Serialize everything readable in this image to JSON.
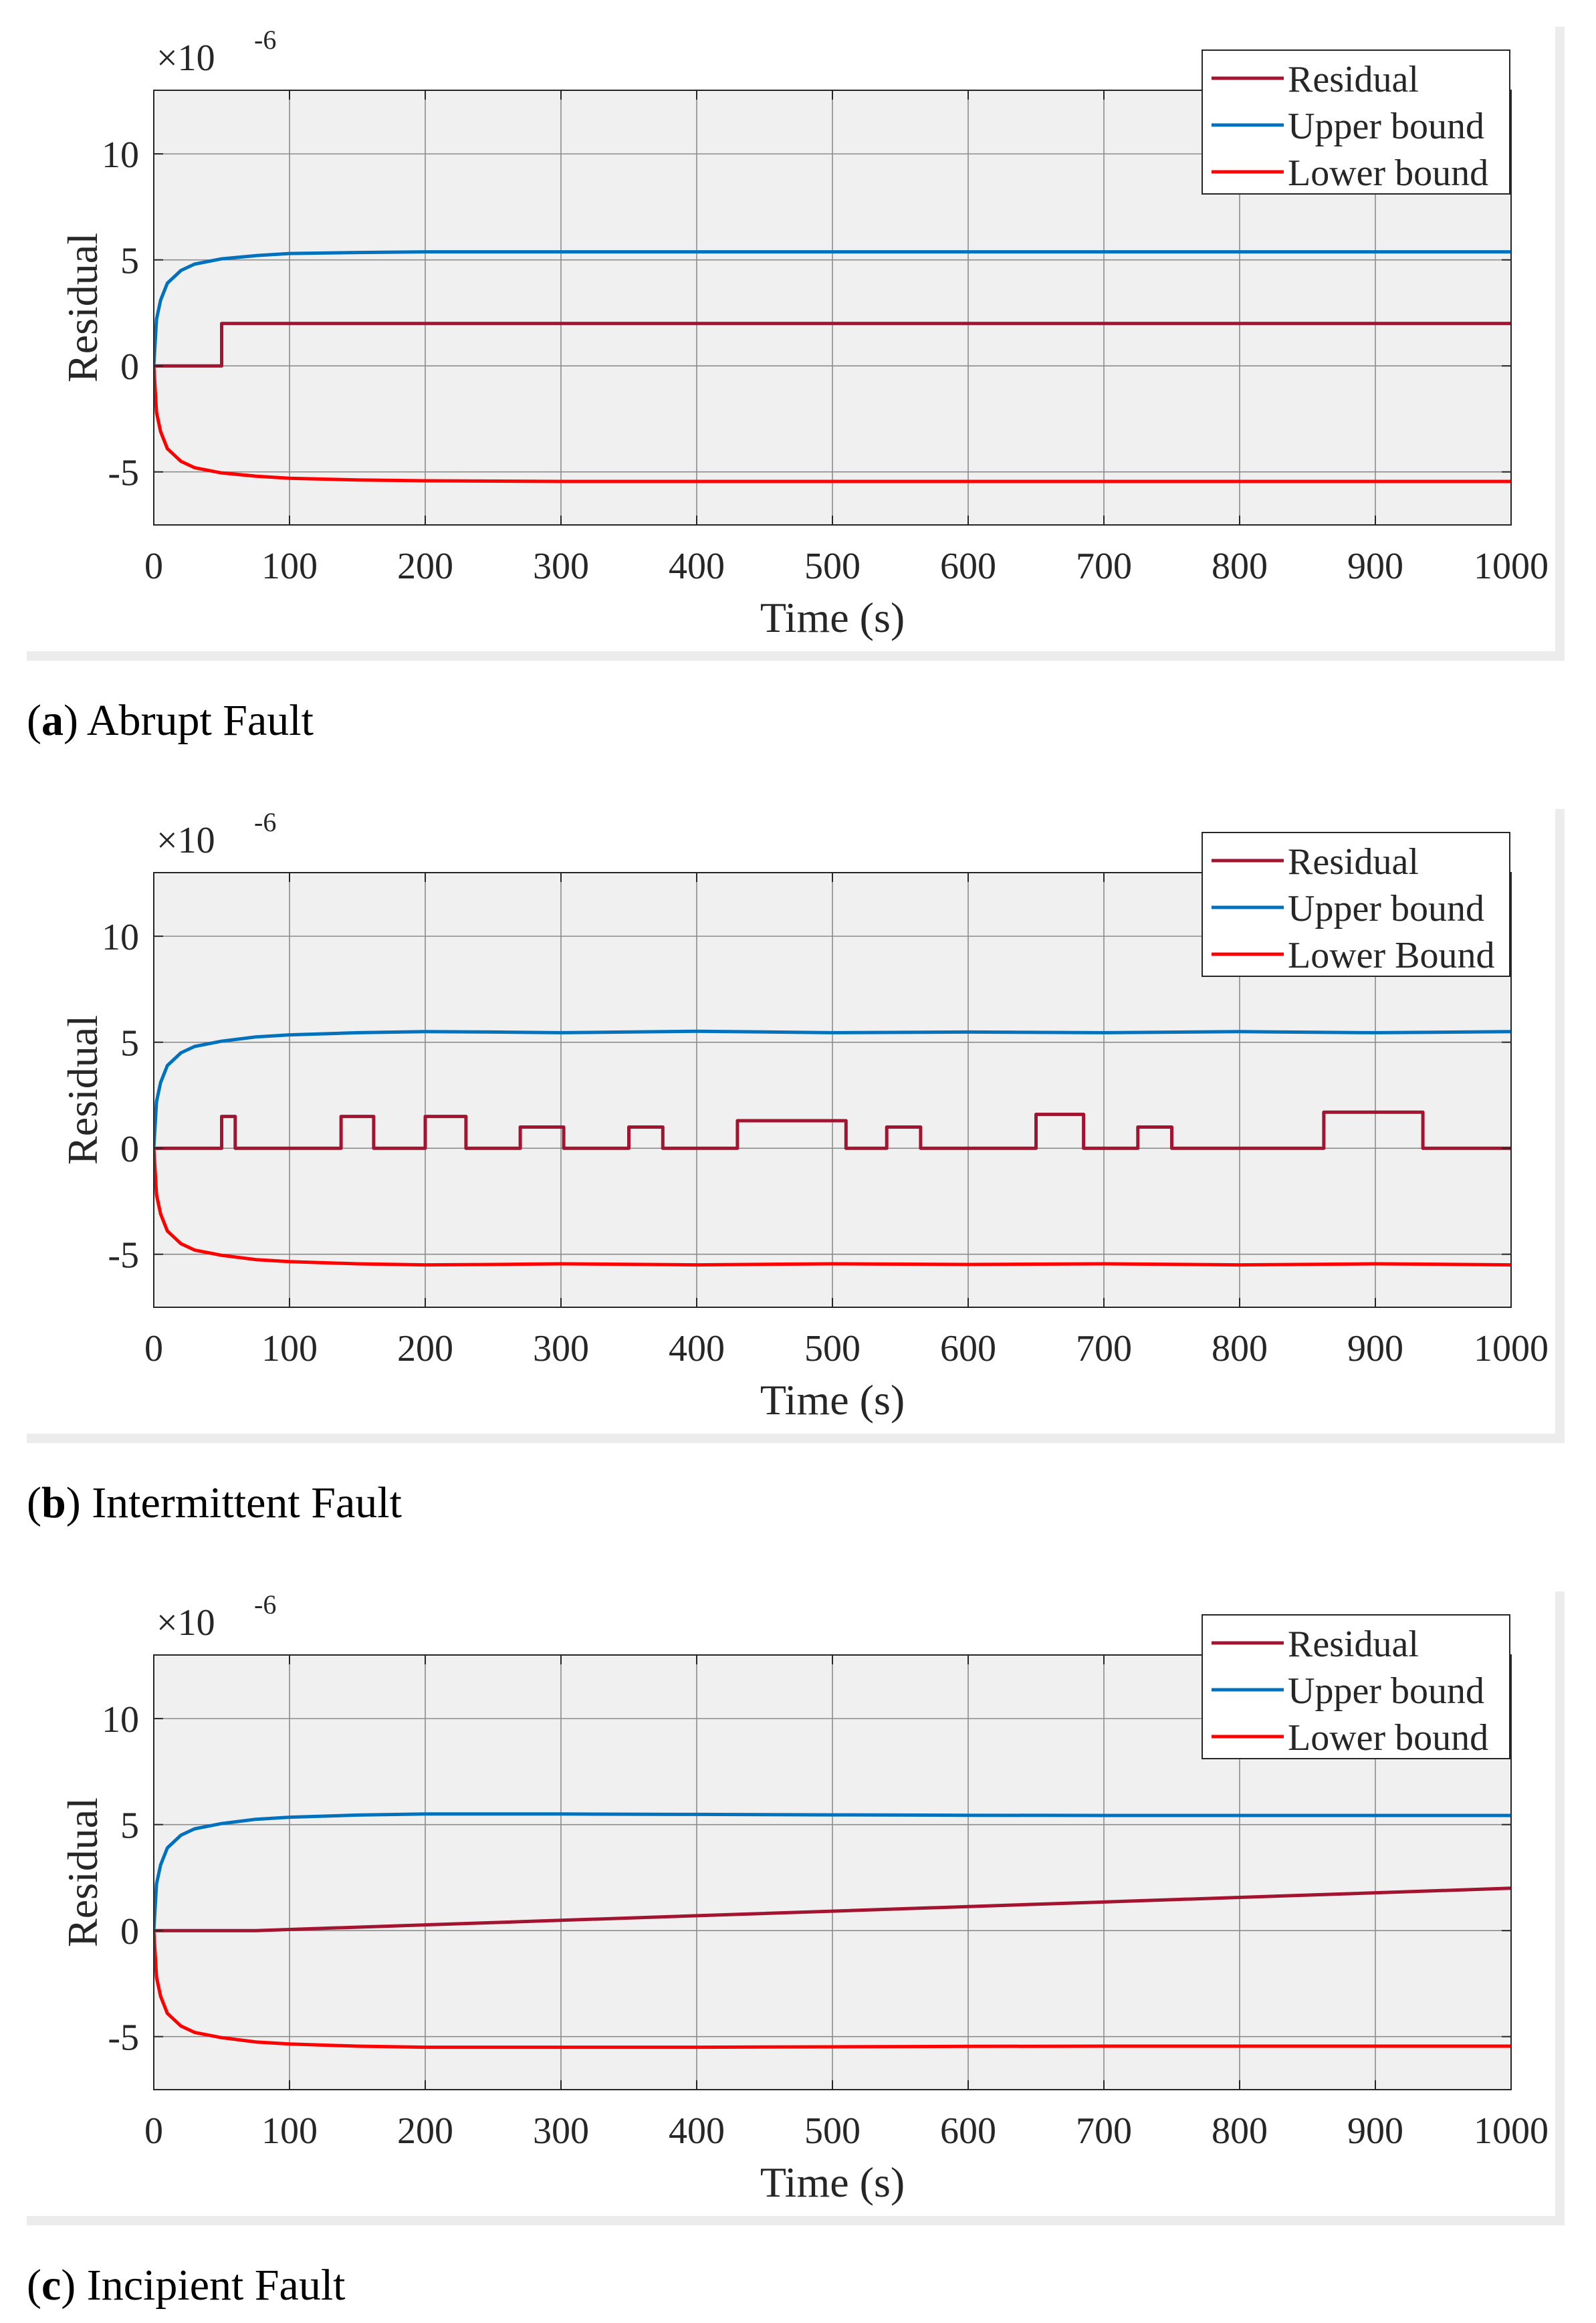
{
  "panels": [
    {
      "caption": {
        "letter": "a",
        "text": "Abrupt Fault"
      },
      "chart_data": {
        "type": "line",
        "title": "",
        "xlabel": "Time (s)",
        "ylabel": "Residual",
        "exponent_label": "×10",
        "exponent": "-6",
        "xlim": [
          0,
          1000
        ],
        "ylim": [
          -7.5,
          13
        ],
        "xticks": [
          0,
          100,
          200,
          300,
          400,
          500,
          600,
          700,
          800,
          900,
          1000
        ],
        "yticks": [
          -5,
          0,
          5,
          10
        ],
        "ytick_labels": [
          "-5",
          "0",
          "5",
          "10"
        ],
        "grid": true,
        "legend_position": "top-right",
        "series": [
          {
            "name": "Residual",
            "color": "#a2142f",
            "x": [
              0,
              50,
              50,
              1000
            ],
            "y": [
              0,
              0,
              2.0,
              2.0
            ]
          },
          {
            "name": "Upper bound",
            "color": "#0072bd",
            "x": [
              0,
              2,
              5,
              10,
              20,
              30,
              50,
              75,
              100,
              150,
              200,
              300,
              500,
              800,
              1000
            ],
            "y": [
              0,
              2.2,
              3.1,
              3.9,
              4.5,
              4.8,
              5.05,
              5.2,
              5.3,
              5.35,
              5.38,
              5.38,
              5.38,
              5.38,
              5.38
            ]
          },
          {
            "name": "Lower bound",
            "color": "#ff0000",
            "x": [
              0,
              2,
              5,
              10,
              20,
              30,
              50,
              75,
              100,
              150,
              200,
              300,
              500,
              800,
              1000
            ],
            "y": [
              0,
              -2.2,
              -3.1,
              -3.9,
              -4.5,
              -4.8,
              -5.05,
              -5.2,
              -5.3,
              -5.38,
              -5.42,
              -5.45,
              -5.45,
              -5.45,
              -5.45
            ]
          }
        ]
      }
    },
    {
      "caption": {
        "letter": "b",
        "text": "Intermittent Fault"
      },
      "chart_data": {
        "type": "line",
        "title": "",
        "xlabel": "Time (s)",
        "ylabel": "Residual",
        "exponent_label": "×10",
        "exponent": "-6",
        "xlim": [
          0,
          1000
        ],
        "ylim": [
          -7.5,
          13
        ],
        "xticks": [
          0,
          100,
          200,
          300,
          400,
          500,
          600,
          700,
          800,
          900,
          1000
        ],
        "yticks": [
          -5,
          0,
          5,
          10
        ],
        "ytick_labels": [
          "-5",
          "0",
          "5",
          "10"
        ],
        "grid": true,
        "legend_position": "top-right",
        "series": [
          {
            "name": "Residual",
            "color": "#a2142f",
            "x": [
              0,
              50,
              50,
              60,
              60,
              138,
              138,
              162,
              162,
              200,
              200,
              230,
              230,
              270,
              270,
              302,
              302,
              350,
              350,
              375,
              375,
              430,
              430,
              510,
              510,
              540,
              540,
              565,
              565,
              650,
              650,
              685,
              685,
              725,
              725,
              750,
              750,
              862,
              862,
              935,
              935,
              1000
            ],
            "y": [
              0,
              0,
              1.5,
              1.5,
              0,
              0,
              1.5,
              1.5,
              0,
              0,
              1.5,
              1.5,
              0,
              0,
              1.0,
              1.0,
              0,
              0,
              1.0,
              1.0,
              0,
              0,
              1.3,
              1.3,
              0,
              0,
              1.0,
              1.0,
              0,
              0,
              1.6,
              1.6,
              0,
              0,
              1.0,
              1.0,
              0,
              0,
              1.7,
              1.7,
              0,
              0
            ]
          },
          {
            "name": "Upper bound",
            "color": "#0072bd",
            "x": [
              0,
              2,
              5,
              10,
              20,
              30,
              50,
              75,
              100,
              150,
              200,
              250,
              300,
              400,
              500,
              600,
              700,
              800,
              900,
              1000
            ],
            "y": [
              0,
              2.2,
              3.1,
              3.9,
              4.5,
              4.8,
              5.05,
              5.25,
              5.35,
              5.45,
              5.5,
              5.48,
              5.45,
              5.52,
              5.45,
              5.48,
              5.45,
              5.5,
              5.45,
              5.5
            ]
          },
          {
            "name": "Lower Bound",
            "color": "#ff0000",
            "x": [
              0,
              2,
              5,
              10,
              20,
              30,
              50,
              75,
              100,
              150,
              200,
              250,
              300,
              400,
              500,
              600,
              700,
              800,
              900,
              1000
            ],
            "y": [
              0,
              -2.2,
              -3.1,
              -3.9,
              -4.5,
              -4.8,
              -5.05,
              -5.25,
              -5.35,
              -5.45,
              -5.5,
              -5.48,
              -5.45,
              -5.5,
              -5.45,
              -5.48,
              -5.45,
              -5.5,
              -5.45,
              -5.5
            ]
          }
        ]
      }
    },
    {
      "caption": {
        "letter": "c",
        "text": "Incipient Fault"
      },
      "chart_data": {
        "type": "line",
        "title": "",
        "xlabel": "Time (s)",
        "ylabel": "Residual",
        "exponent_label": "×10",
        "exponent": "-6",
        "xlim": [
          0,
          1000
        ],
        "ylim": [
          -7.5,
          13
        ],
        "xticks": [
          0,
          100,
          200,
          300,
          400,
          500,
          600,
          700,
          800,
          900,
          1000
        ],
        "yticks": [
          -5,
          0,
          5,
          10
        ],
        "ytick_labels": [
          "-5",
          "0",
          "5",
          "10"
        ],
        "grid": true,
        "legend_position": "top-right",
        "series": [
          {
            "name": "Residual",
            "color": "#a2142f",
            "x": [
              0,
              50,
              75,
              1000
            ],
            "y": [
              0,
              0,
              0,
              2.0
            ]
          },
          {
            "name": "Upper bound",
            "color": "#0072bd",
            "x": [
              0,
              2,
              5,
              10,
              20,
              30,
              50,
              75,
              100,
              150,
              200,
              300,
              400,
              500,
              600,
              700,
              800,
              900,
              1000
            ],
            "y": [
              0,
              2.2,
              3.1,
              3.9,
              4.5,
              4.8,
              5.05,
              5.25,
              5.35,
              5.45,
              5.5,
              5.5,
              5.48,
              5.46,
              5.44,
              5.43,
              5.43,
              5.43,
              5.43
            ]
          },
          {
            "name": "Lower bound",
            "color": "#ff0000",
            "x": [
              0,
              2,
              5,
              10,
              20,
              30,
              50,
              75,
              100,
              150,
              200,
              300,
              400,
              500,
              600,
              700,
              800,
              900,
              1000
            ],
            "y": [
              0,
              -2.2,
              -3.1,
              -3.9,
              -4.5,
              -4.8,
              -5.05,
              -5.25,
              -5.35,
              -5.45,
              -5.5,
              -5.5,
              -5.5,
              -5.48,
              -5.46,
              -5.45,
              -5.45,
              -5.45,
              -5.45
            ]
          }
        ]
      }
    }
  ]
}
